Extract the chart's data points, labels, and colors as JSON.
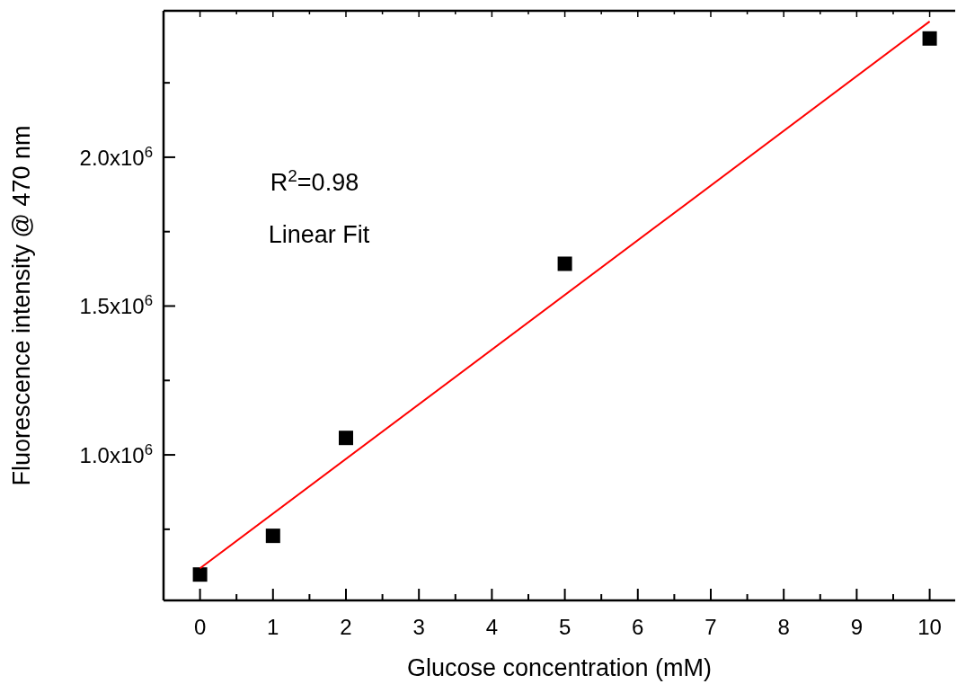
{
  "chart_data": {
    "type": "scatter",
    "xlabel": "Glucose concentration (mM)",
    "ylabel": "Fluorescence intensity @ 470 nm",
    "x": [
      0,
      1,
      2,
      5,
      10
    ],
    "series": [
      {
        "color": "#000000",
        "marker": "square",
        "values": [
          598000,
          728000,
          1057000,
          1642000,
          2399000
        ]
      },
      {
        "type": "line",
        "color": "#ff0000",
        "x": [
          0,
          10
        ],
        "values": [
          619000,
          2456000
        ]
      }
    ],
    "xlim": [
      -0.5,
      10.35
    ],
    "xticks": [
      0,
      {
        "value": 0.5,
        "label": null
      },
      1,
      {
        "value": 1.5,
        "label": null
      },
      2,
      {
        "value": 2.5,
        "label": null
      },
      3,
      {
        "value": 3.5,
        "label": null
      },
      4,
      {
        "value": 4.5,
        "label": null
      },
      5,
      {
        "value": 5.5,
        "label": null
      },
      6,
      {
        "value": 6.5,
        "label": null
      },
      7,
      {
        "value": 7.5,
        "label": null
      },
      8,
      {
        "value": 8.5,
        "label": null
      },
      9,
      {
        "value": 9.5,
        "label": null
      },
      10
    ],
    "ylim": [
      511000,
      2492000
    ],
    "yticks": [
      {
        "value": 750000,
        "label": null
      },
      {
        "value": 1000000,
        "label": "1.0x10$^{6}$"
      },
      {
        "value": 1250000,
        "label": null
      },
      {
        "value": 1500000,
        "label": "1.5x10$^{6}$"
      },
      {
        "value": 1750000,
        "label": null
      },
      {
        "value": 2000000,
        "label": "2.0x10$^{6}$"
      },
      {
        "value": 2250000,
        "label": null
      }
    ],
    "annotations": [
      "R$^{2}$=0.98",
      "Linear Fit"
    ],
    "grid": false
  }
}
